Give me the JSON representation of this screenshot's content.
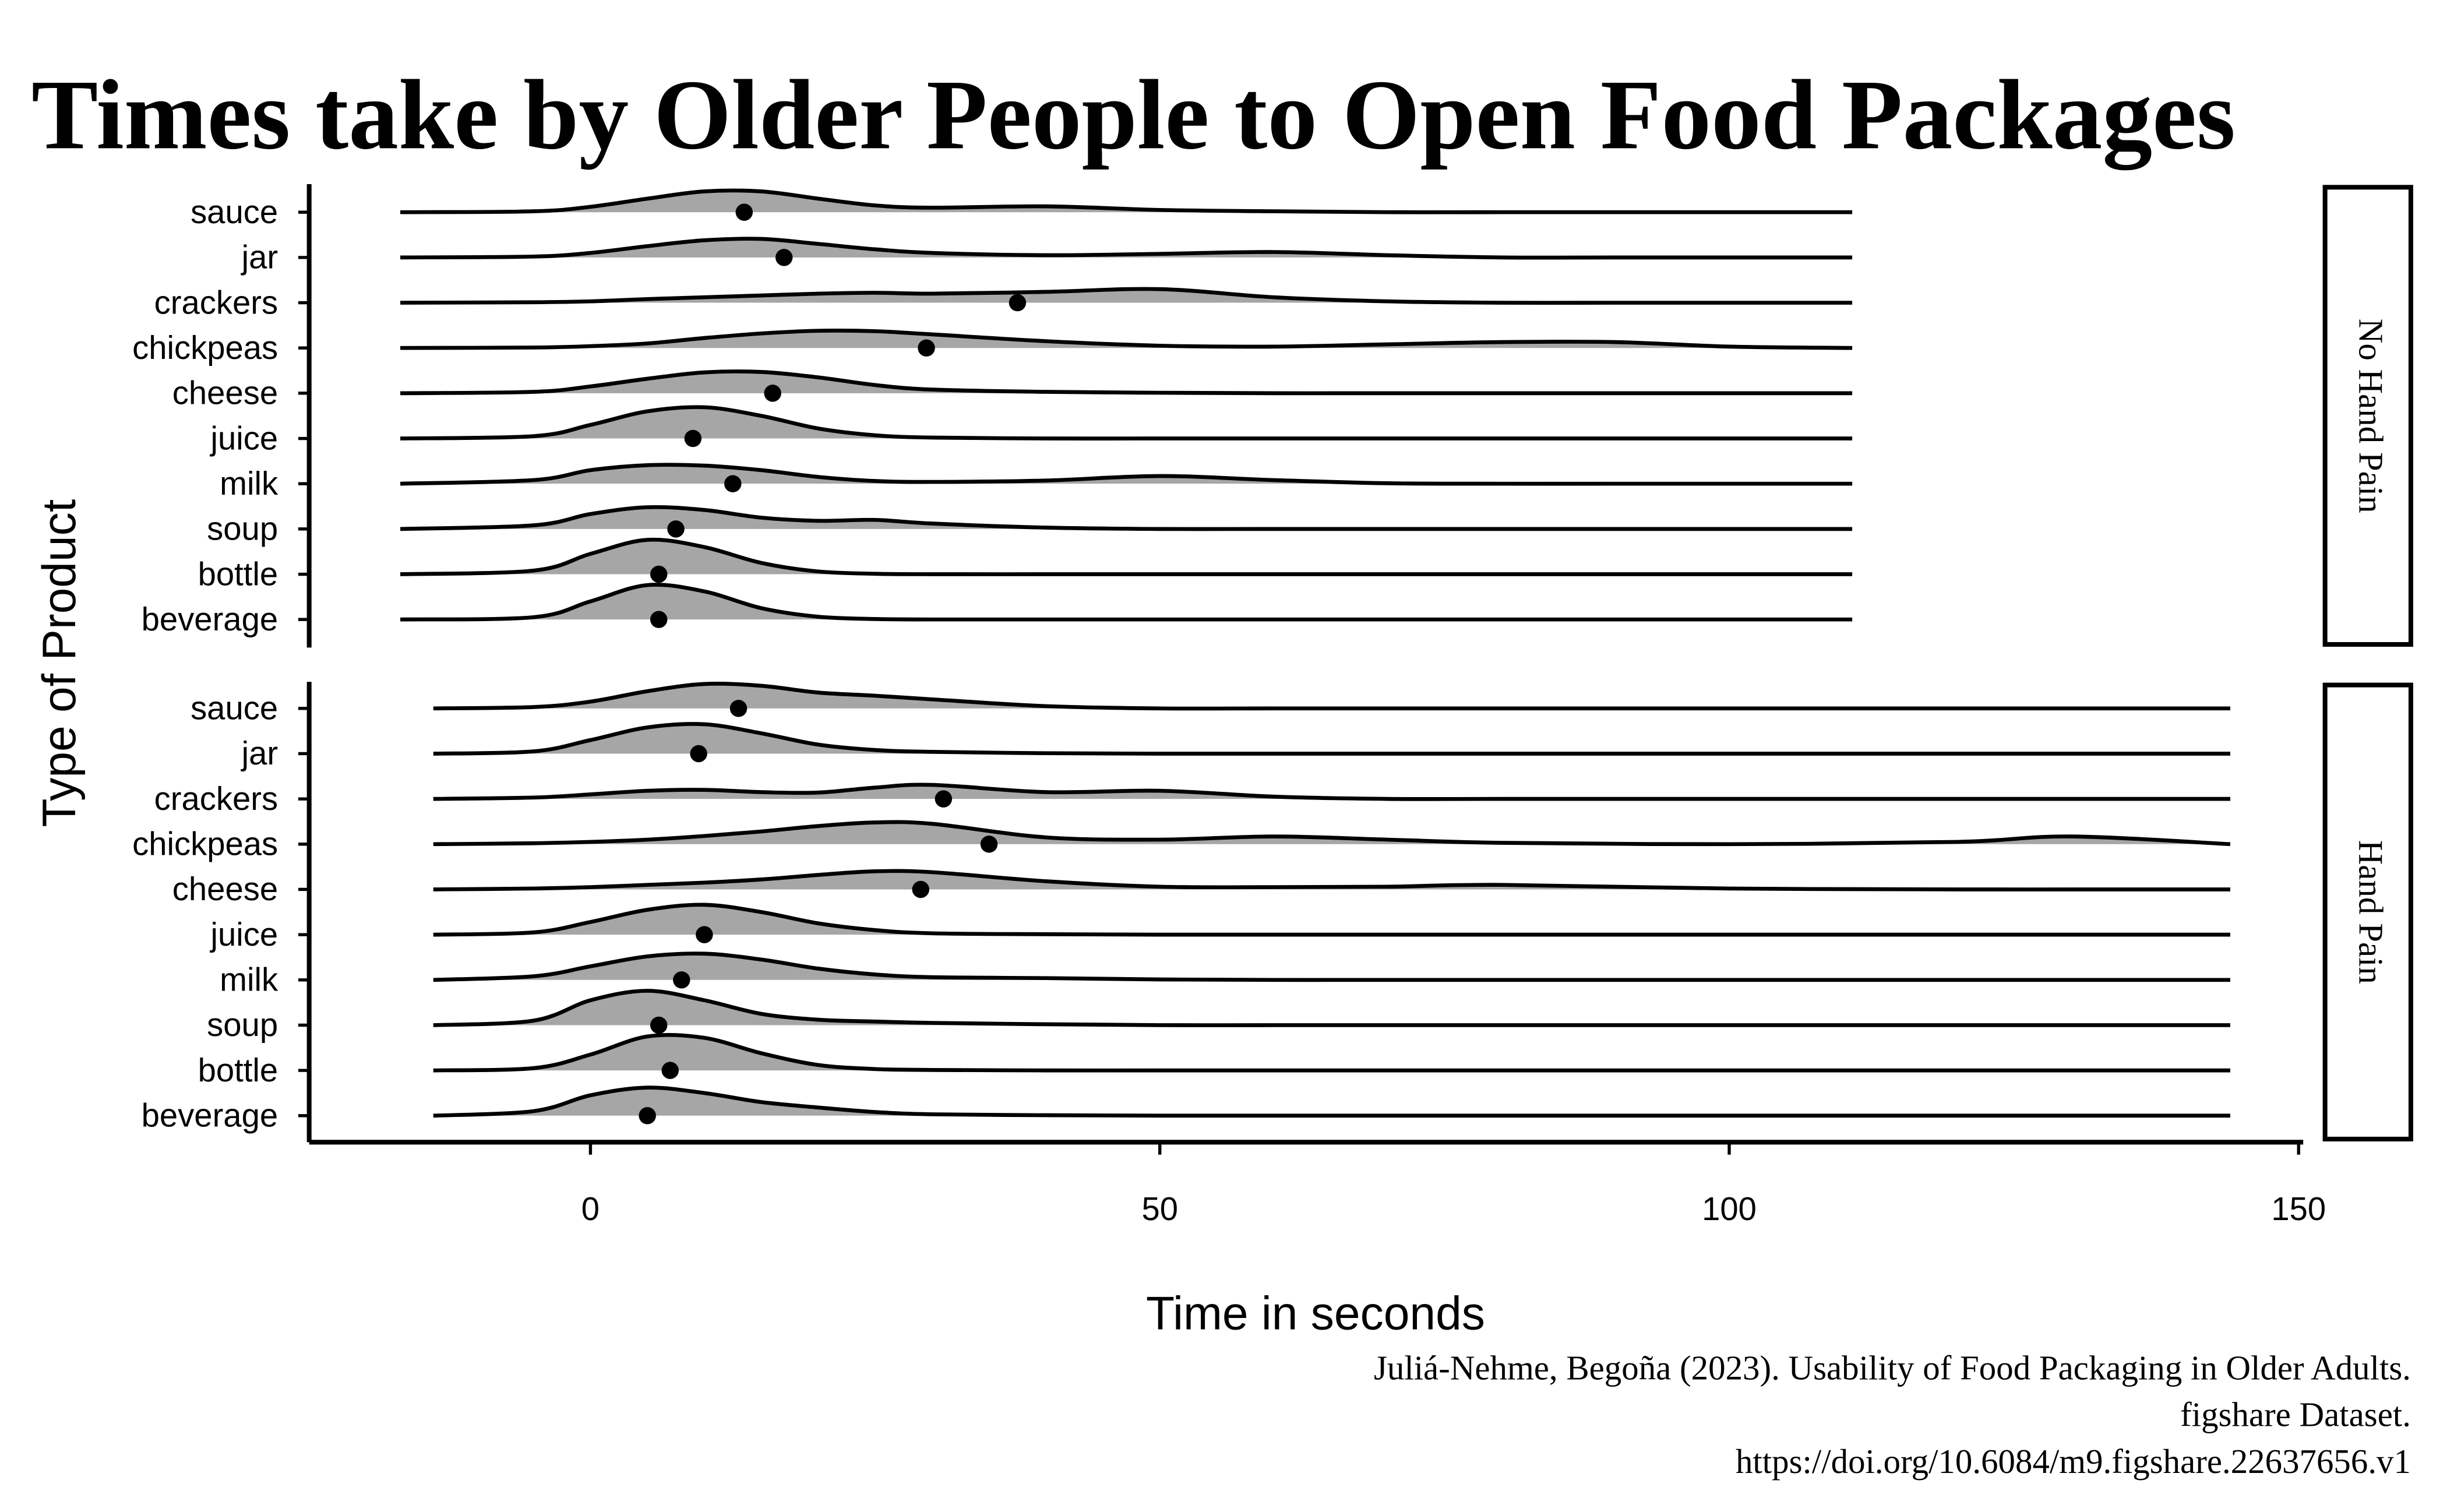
{
  "chart_data": {
    "type": "ridgeline",
    "title": "Times take by Older People to Open Food Packages",
    "x_label": "Time in seconds",
    "y_label": "Type of Product",
    "caption": [
      "Juliá-Nehme, Begoña (2023). Usability of Food Packaging in Older Adults.",
      "figshare Dataset.",
      "https://doi.org/10.6084/m9.figshare.22637656.v1"
    ],
    "xlim": [
      -24.7,
      151.5
    ],
    "xticks": [
      0,
      50,
      100,
      150
    ],
    "fill_color": "#a6a6a6",
    "point_color": "#000000",
    "facets": [
      {
        "strip": "No Hand Pain",
        "categories": [
          "sauce",
          "jar",
          "crackers",
          "chickpeas",
          "cheese",
          "juice",
          "milk",
          "soup",
          "bottle",
          "beverage"
        ],
        "density_x": [
          -16.7,
          -5,
          0,
          5,
          10,
          15,
          20,
          25,
          30,
          40,
          50,
          60,
          70,
          80,
          90,
          100,
          110.8
        ],
        "densities": [
          [
            0,
            0.02,
            0.12,
            0.3,
            0.46,
            0.46,
            0.3,
            0.15,
            0.1,
            0.13,
            0.05,
            0.02,
            0,
            0,
            0,
            0,
            0
          ],
          [
            0,
            0.02,
            0.1,
            0.25,
            0.38,
            0.41,
            0.3,
            0.18,
            0.1,
            0.05,
            0.08,
            0.12,
            0.05,
            0,
            0,
            0,
            0
          ],
          [
            0,
            0.01,
            0.03,
            0.08,
            0.12,
            0.16,
            0.2,
            0.22,
            0.2,
            0.24,
            0.3,
            0.12,
            0.03,
            0,
            0,
            0,
            0
          ],
          [
            0,
            0.01,
            0.04,
            0.1,
            0.22,
            0.32,
            0.38,
            0.37,
            0.3,
            0.15,
            0.05,
            0.03,
            0.08,
            0.13,
            0.13,
            0.03,
            0
          ],
          [
            0,
            0.03,
            0.15,
            0.32,
            0.46,
            0.47,
            0.35,
            0.18,
            0.08,
            0.03,
            0.01,
            0,
            0,
            0,
            0,
            0,
            0
          ],
          [
            0,
            0.05,
            0.3,
            0.6,
            0.69,
            0.5,
            0.22,
            0.07,
            0.02,
            0,
            0,
            0,
            0,
            0,
            0,
            0,
            0
          ],
          [
            0,
            0.08,
            0.3,
            0.41,
            0.4,
            0.3,
            0.15,
            0.06,
            0.04,
            0.07,
            0.17,
            0.08,
            0.01,
            0,
            0,
            0,
            0
          ],
          [
            0,
            0.08,
            0.33,
            0.48,
            0.42,
            0.25,
            0.18,
            0.2,
            0.12,
            0.03,
            0,
            0,
            0,
            0,
            0,
            0,
            0
          ],
          [
            0,
            0.08,
            0.45,
            0.76,
            0.6,
            0.25,
            0.06,
            0.01,
            0,
            0,
            0,
            0,
            0,
            0,
            0,
            0,
            0
          ],
          [
            0,
            0.05,
            0.4,
            0.76,
            0.62,
            0.25,
            0.06,
            0.01,
            0,
            0,
            0,
            0,
            0,
            0,
            0,
            0,
            0
          ]
        ],
        "medians": [
          13.5,
          17,
          37.5,
          29.5,
          16,
          9,
          12.5,
          7.5,
          6,
          6
        ]
      },
      {
        "strip": "Hand Pain",
        "categories": [
          "sauce",
          "jar",
          "crackers",
          "chickpeas",
          "cheese",
          "juice",
          "milk",
          "soup",
          "bottle",
          "beverage"
        ],
        "density_x": [
          -13.8,
          -5,
          0,
          5,
          10,
          15,
          20,
          25,
          30,
          40,
          50,
          60,
          70,
          80,
          100,
          120,
          130,
          144
        ],
        "densities": [
          [
            0,
            0.03,
            0.15,
            0.38,
            0.54,
            0.5,
            0.35,
            0.28,
            0.2,
            0.05,
            0,
            0,
            0,
            0,
            0,
            0,
            0,
            0
          ],
          [
            0,
            0.05,
            0.3,
            0.58,
            0.65,
            0.45,
            0.2,
            0.08,
            0.04,
            0.01,
            0,
            0,
            0,
            0,
            0,
            0,
            0,
            0
          ],
          [
            0,
            0.03,
            0.1,
            0.18,
            0.2,
            0.15,
            0.14,
            0.25,
            0.31,
            0.15,
            0.18,
            0.05,
            0,
            0,
            0,
            0,
            0,
            0
          ],
          [
            0,
            0.02,
            0.05,
            0.1,
            0.18,
            0.28,
            0.4,
            0.48,
            0.45,
            0.15,
            0.1,
            0.17,
            0.1,
            0.03,
            0,
            0.05,
            0.17,
            0
          ],
          [
            0,
            0.02,
            0.05,
            0.1,
            0.15,
            0.22,
            0.32,
            0.4,
            0.38,
            0.18,
            0.06,
            0.05,
            0.06,
            0.1,
            0.02,
            0,
            0,
            0
          ],
          [
            0,
            0.05,
            0.28,
            0.55,
            0.66,
            0.5,
            0.25,
            0.1,
            0.03,
            0.01,
            0,
            0,
            0,
            0,
            0,
            0,
            0,
            0
          ],
          [
            0,
            0.08,
            0.3,
            0.52,
            0.58,
            0.45,
            0.25,
            0.12,
            0.06,
            0.04,
            0.01,
            0,
            0,
            0,
            0,
            0,
            0,
            0
          ],
          [
            0,
            0.1,
            0.55,
            0.76,
            0.55,
            0.25,
            0.12,
            0.08,
            0.05,
            0.02,
            0,
            0,
            0,
            0,
            0,
            0,
            0,
            0
          ],
          [
            0,
            0.05,
            0.35,
            0.75,
            0.72,
            0.38,
            0.12,
            0.03,
            0.01,
            0,
            0,
            0,
            0,
            0,
            0,
            0,
            0,
            0
          ],
          [
            0,
            0.1,
            0.45,
            0.62,
            0.5,
            0.3,
            0.18,
            0.08,
            0.03,
            0.01,
            0,
            0,
            0,
            0,
            0,
            0,
            0,
            0
          ]
        ],
        "medians": [
          13,
          9.5,
          31,
          35,
          29,
          10,
          8,
          6,
          7,
          5
        ]
      }
    ]
  }
}
